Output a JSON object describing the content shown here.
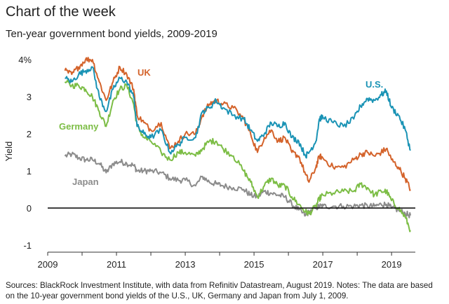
{
  "header": {
    "title": "Chart of the week",
    "subtitle": "Ten-year government bond yields, 2009-2019"
  },
  "footer": {
    "source": "Sources: BlackRock Investment Institute, with data from Refinitiv Datastream, August 2019. Notes: The data are based on the 10-year government bond yields of the U.S., UK, Germany and Japan from July 1, 2009."
  },
  "chart_data": {
    "type": "line",
    "title": "Ten-year government bond yields, 2009-2019",
    "xlabel": "",
    "ylabel": "Yield",
    "xlim": [
      2009.0,
      2019.65
    ],
    "ylim": [
      -1,
      4
    ],
    "x_ticks": [
      2009,
      2011,
      2013,
      2015,
      2017,
      2019
    ],
    "x_tick_labels": [
      "2009",
      "2011",
      "2013",
      "2015",
      "2017",
      "2019"
    ],
    "y_ticks": [
      -1,
      0,
      1,
      2,
      3,
      4
    ],
    "y_tick_labels": [
      "-1",
      "0",
      "1",
      "2",
      "3",
      "4%"
    ],
    "zero_line": true,
    "grid": false,
    "legend": "inline labels",
    "series": [
      {
        "name": "U.S.",
        "color": "#1a93b5",
        "x": [
          2009.5,
          2009.7,
          2009.9,
          2010.1,
          2010.3,
          2010.5,
          2010.7,
          2010.9,
          2011.1,
          2011.3,
          2011.5,
          2011.6,
          2011.8,
          2012.0,
          2012.3,
          2012.55,
          2012.8,
          2013.0,
          2013.3,
          2013.5,
          2013.7,
          2013.9,
          2014.1,
          2014.4,
          2014.7,
          2014.9,
          2015.1,
          2015.3,
          2015.5,
          2015.7,
          2015.9,
          2016.1,
          2016.3,
          2016.5,
          2016.6,
          2016.8,
          2016.9,
          2017.0,
          2017.3,
          2017.6,
          2017.9,
          2018.1,
          2018.3,
          2018.5,
          2018.7,
          2018.85,
          2019.0,
          2019.2,
          2019.4,
          2019.55
        ],
        "values": [
          3.5,
          3.4,
          3.6,
          3.7,
          3.8,
          3.0,
          2.6,
          3.2,
          3.5,
          3.4,
          3.0,
          2.2,
          2.0,
          1.9,
          2.1,
          1.5,
          1.7,
          1.9,
          1.9,
          2.6,
          2.7,
          2.9,
          2.7,
          2.5,
          2.4,
          2.1,
          1.8,
          2.0,
          2.3,
          2.2,
          2.3,
          1.9,
          1.8,
          1.4,
          1.5,
          1.8,
          2.4,
          2.45,
          2.3,
          2.2,
          2.4,
          2.75,
          2.95,
          2.9,
          3.05,
          3.15,
          2.7,
          2.5,
          2.1,
          1.55
        ]
      },
      {
        "name": "UK",
        "color": "#d4632b",
        "x": [
          2009.5,
          2009.7,
          2009.9,
          2010.1,
          2010.3,
          2010.5,
          2010.7,
          2010.9,
          2011.1,
          2011.3,
          2011.5,
          2011.6,
          2011.8,
          2012.0,
          2012.3,
          2012.55,
          2012.8,
          2013.0,
          2013.3,
          2013.5,
          2013.7,
          2013.9,
          2014.1,
          2014.4,
          2014.7,
          2014.9,
          2015.1,
          2015.3,
          2015.5,
          2015.7,
          2015.9,
          2016.1,
          2016.3,
          2016.5,
          2016.6,
          2016.8,
          2016.9,
          2017.0,
          2017.3,
          2017.6,
          2017.9,
          2018.1,
          2018.3,
          2018.5,
          2018.7,
          2018.85,
          2019.0,
          2019.2,
          2019.4,
          2019.55
        ],
        "values": [
          3.7,
          3.6,
          3.8,
          4.0,
          4.0,
          3.4,
          2.9,
          3.4,
          3.8,
          3.6,
          3.2,
          2.5,
          2.3,
          2.1,
          2.3,
          1.6,
          1.8,
          2.0,
          2.0,
          2.5,
          2.8,
          2.9,
          2.8,
          2.7,
          2.4,
          2.0,
          1.5,
          1.9,
          2.1,
          1.8,
          1.9,
          1.5,
          1.4,
          0.9,
          0.7,
          1.1,
          1.4,
          1.35,
          1.1,
          1.1,
          1.3,
          1.45,
          1.5,
          1.4,
          1.5,
          1.6,
          1.3,
          1.1,
          0.8,
          0.5
        ]
      },
      {
        "name": "Germany",
        "color": "#7cbd45",
        "x": [
          2009.5,
          2009.7,
          2009.9,
          2010.1,
          2010.3,
          2010.5,
          2010.7,
          2010.9,
          2011.1,
          2011.3,
          2011.5,
          2011.6,
          2011.8,
          2012.0,
          2012.3,
          2012.55,
          2012.8,
          2013.0,
          2013.3,
          2013.5,
          2013.7,
          2013.9,
          2014.1,
          2014.4,
          2014.7,
          2014.9,
          2015.1,
          2015.3,
          2015.5,
          2015.7,
          2015.9,
          2016.1,
          2016.3,
          2016.5,
          2016.6,
          2016.8,
          2016.9,
          2017.0,
          2017.3,
          2017.6,
          2017.9,
          2018.1,
          2018.3,
          2018.5,
          2018.7,
          2018.85,
          2019.0,
          2019.2,
          2019.4,
          2019.55
        ],
        "values": [
          3.4,
          3.3,
          3.3,
          3.2,
          3.0,
          2.6,
          2.2,
          2.9,
          3.2,
          3.3,
          2.8,
          2.2,
          1.9,
          1.8,
          1.5,
          1.3,
          1.5,
          1.5,
          1.4,
          1.6,
          1.8,
          1.8,
          1.6,
          1.4,
          1.0,
          0.7,
          0.3,
          0.6,
          0.8,
          0.6,
          0.6,
          0.3,
          0.1,
          -0.1,
          -0.15,
          0.05,
          0.25,
          0.35,
          0.4,
          0.45,
          0.45,
          0.65,
          0.55,
          0.35,
          0.45,
          0.45,
          0.2,
          0.0,
          -0.25,
          -0.6
        ]
      },
      {
        "name": "Japan",
        "color": "#8c8c8c",
        "x": [
          2009.5,
          2009.7,
          2009.9,
          2010.1,
          2010.3,
          2010.5,
          2010.7,
          2010.9,
          2011.1,
          2011.3,
          2011.5,
          2011.6,
          2011.8,
          2012.0,
          2012.3,
          2012.55,
          2012.8,
          2013.0,
          2013.3,
          2013.5,
          2013.7,
          2013.9,
          2014.1,
          2014.4,
          2014.7,
          2014.9,
          2015.1,
          2015.3,
          2015.5,
          2015.7,
          2015.9,
          2016.1,
          2016.3,
          2016.5,
          2016.6,
          2016.8,
          2016.9,
          2017.0,
          2017.3,
          2017.6,
          2017.9,
          2018.1,
          2018.3,
          2018.5,
          2018.7,
          2018.85,
          2019.0,
          2019.2,
          2019.4,
          2019.55
        ],
        "values": [
          1.4,
          1.45,
          1.35,
          1.3,
          1.3,
          1.2,
          0.95,
          1.2,
          1.25,
          1.2,
          1.15,
          1.0,
          1.0,
          1.0,
          0.95,
          0.8,
          0.75,
          0.75,
          0.6,
          0.85,
          0.7,
          0.65,
          0.6,
          0.55,
          0.5,
          0.35,
          0.3,
          0.45,
          0.4,
          0.35,
          0.3,
          0.1,
          -0.05,
          -0.2,
          -0.1,
          0.0,
          0.05,
          0.05,
          0.05,
          0.05,
          0.05,
          0.08,
          0.05,
          0.05,
          0.1,
          0.1,
          0.0,
          -0.05,
          -0.15,
          -0.2
        ]
      }
    ],
    "labels": {
      "us": "U.S.",
      "uk": "UK",
      "germany": "Germany",
      "japan": "Japan"
    }
  }
}
